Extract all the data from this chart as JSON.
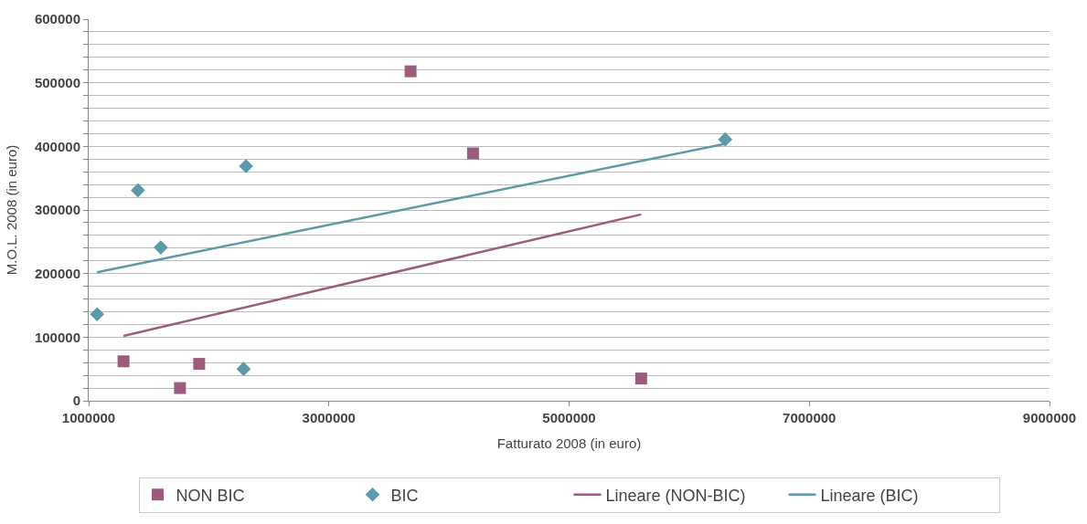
{
  "chart_data": {
    "type": "scatter",
    "xlabel": "Fatturato 2008 (in euro)",
    "ylabel": "M.O.L. 2008 (in euro)",
    "xlim": [
      1000000,
      9000000
    ],
    "xticks": [
      1000000,
      3000000,
      5000000,
      7000000,
      9000000
    ],
    "ylim": [
      0,
      600000
    ],
    "yticks": [
      0,
      {
        "value": 20000,
        "label": null
      },
      {
        "value": 40000,
        "label": null
      },
      {
        "value": 60000,
        "label": null
      },
      {
        "value": 80000,
        "label": null
      },
      100000,
      {
        "value": 120000,
        "label": null
      },
      {
        "value": 140000,
        "label": null
      },
      {
        "value": 160000,
        "label": null
      },
      {
        "value": 180000,
        "label": null
      },
      200000,
      {
        "value": 220000,
        "label": null
      },
      {
        "value": 240000,
        "label": null
      },
      {
        "value": 260000,
        "label": null
      },
      {
        "value": 280000,
        "label": null
      },
      300000,
      {
        "value": 320000,
        "label": null
      },
      {
        "value": 340000,
        "label": null
      },
      {
        "value": 360000,
        "label": null
      },
      {
        "value": 380000,
        "label": null
      },
      400000,
      {
        "value": 420000,
        "label": null
      },
      {
        "value": 440000,
        "label": null
      },
      {
        "value": 460000,
        "label": null
      },
      {
        "value": 480000,
        "label": null
      },
      500000,
      {
        "value": 520000,
        "label": null
      },
      {
        "value": 540000,
        "label": null
      },
      {
        "value": 560000,
        "label": null
      },
      {
        "value": 580000,
        "label": null
      },
      600000
    ],
    "grid": "y",
    "legend": "bottom",
    "series": [
      {
        "name": "NON BIC",
        "marker": "square",
        "color": "#9c5b7c",
        "x": [
          1290000,
          1760000,
          1920000,
          3680000,
          4200000,
          5600000
        ],
        "values": [
          62000,
          20000,
          58000,
          518000,
          389000,
          35000
        ]
      },
      {
        "name": "BIC",
        "marker": "diamond",
        "color": "#5b9aa9",
        "x": [
          1070000,
          1410000,
          1600000,
          2310000,
          2290000,
          6300000
        ],
        "values": [
          136000,
          331000,
          241000,
          369000,
          50000,
          411000
        ]
      },
      {
        "name": "Lineare (NON-BIC)",
        "type": "line",
        "marker": "none",
        "color": "#9c5b7c",
        "x": [
          1290000,
          5600000
        ],
        "values": [
          102000,
          293000
        ]
      },
      {
        "name": "Lineare (BIC)",
        "type": "line",
        "marker": "none",
        "color": "#5b9aa9",
        "x": [
          1070000,
          6300000
        ],
        "values": [
          202000,
          404000
        ]
      }
    ]
  }
}
